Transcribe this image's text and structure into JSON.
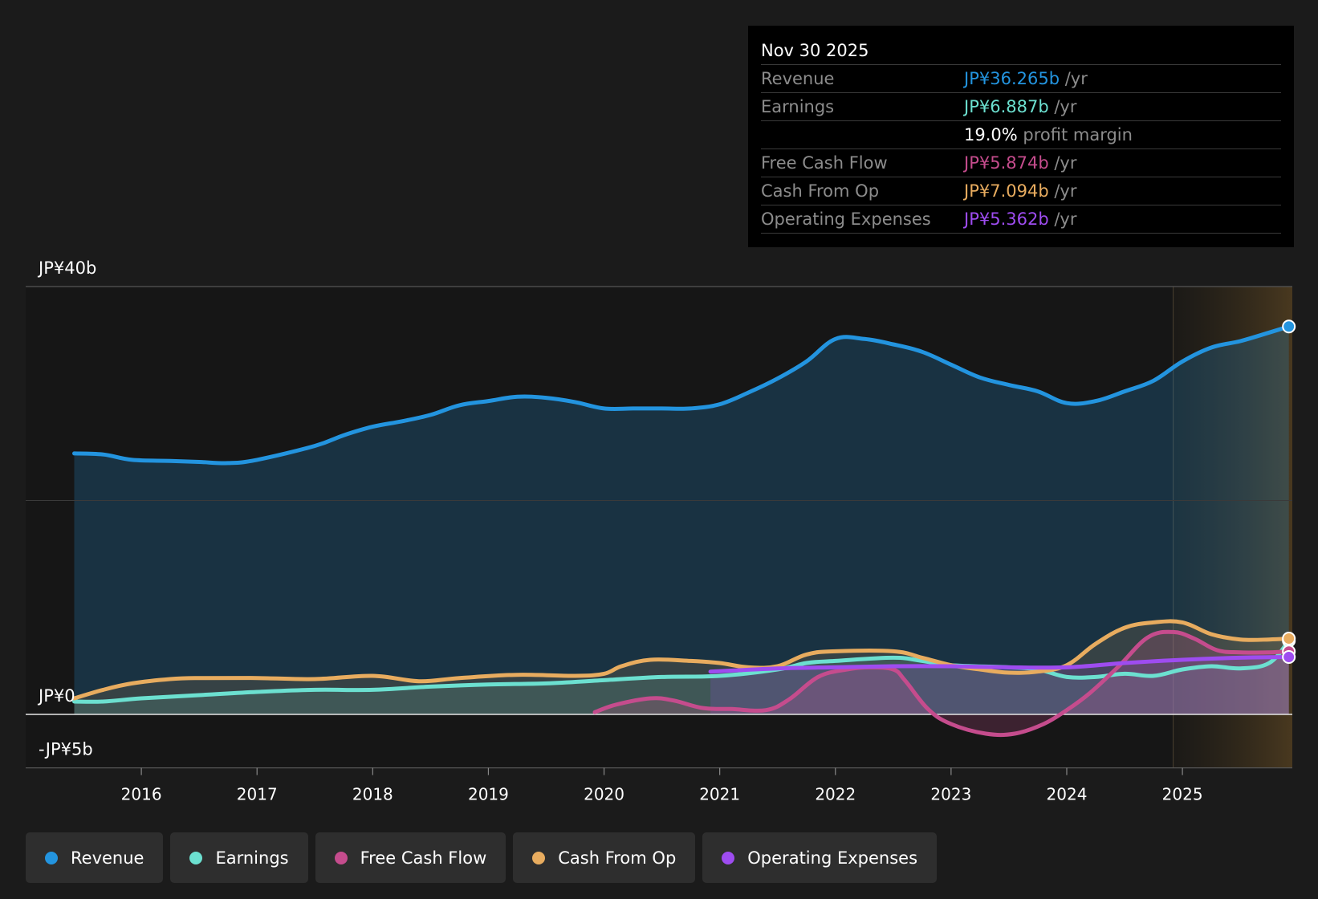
{
  "tooltip": {
    "date": "Nov 30 2025",
    "rows": [
      {
        "label": "Revenue",
        "value": "JP¥36.265b",
        "unit": "/yr",
        "color": "#2394df"
      },
      {
        "label": "Earnings",
        "value": "JP¥6.887b",
        "unit": "/yr",
        "color": "#6ce0d0"
      },
      {
        "label": "",
        "value": "19.0%",
        "unit": "profit margin",
        "color": "#ffffff"
      },
      {
        "label": "Free Cash Flow",
        "value": "JP¥5.874b",
        "unit": "/yr",
        "color": "#c54c8d"
      },
      {
        "label": "Cash From Op",
        "value": "JP¥7.094b",
        "unit": "/yr",
        "color": "#e8ac5f"
      },
      {
        "label": "Operating Expenses",
        "value": "JP¥5.362b",
        "unit": "/yr",
        "color": "#9e4cf0"
      }
    ]
  },
  "legend": [
    {
      "label": "Revenue",
      "color": "#2394df"
    },
    {
      "label": "Earnings",
      "color": "#6ce0d0"
    },
    {
      "label": "Free Cash Flow",
      "color": "#c54c8d"
    },
    {
      "label": "Cash From Op",
      "color": "#e8ac5f"
    },
    {
      "label": "Operating Expenses",
      "color": "#9e4cf0"
    }
  ],
  "chart_data": {
    "type": "line",
    "title": "",
    "xlabel": "",
    "ylabel": "",
    "ylim": [
      -5,
      40
    ],
    "xlim": [
      2015.0,
      2025.95
    ],
    "y_labels": [
      {
        "value": 40,
        "label": "JP¥40b"
      },
      {
        "value": 0,
        "label": "JP¥0"
      },
      {
        "value": -5,
        "label": "-JP¥5b"
      }
    ],
    "x_ticks": [
      {
        "value": 2016,
        "label": "2016"
      },
      {
        "value": 2017,
        "label": "2017"
      },
      {
        "value": 2018,
        "label": "2018"
      },
      {
        "value": 2019,
        "label": "2019"
      },
      {
        "value": 2020,
        "label": "2020"
      },
      {
        "value": 2021,
        "label": "2021"
      },
      {
        "value": 2022,
        "label": "2022"
      },
      {
        "value": 2023,
        "label": "2023"
      },
      {
        "value": 2024,
        "label": "2024"
      },
      {
        "value": 2025,
        "label": "2025"
      }
    ],
    "forecast_start": 2024.92,
    "series": [
      {
        "name": "Revenue",
        "color": "#2394df",
        "fill": true,
        "x": [
          2015.42,
          2015.67,
          2015.92,
          2016.25,
          2016.5,
          2016.75,
          2017.0,
          2017.5,
          2017.75,
          2018.0,
          2018.25,
          2018.5,
          2018.75,
          2019.0,
          2019.25,
          2019.5,
          2019.75,
          2020.0,
          2020.25,
          2020.5,
          2020.75,
          2021.0,
          2021.25,
          2021.5,
          2021.75,
          2022.0,
          2022.25,
          2022.5,
          2022.75,
          2023.0,
          2023.25,
          2023.5,
          2023.75,
          2024.0,
          2024.25,
          2024.5,
          2024.75,
          2025.0,
          2025.25,
          2025.5,
          2025.75,
          2025.92
        ],
        "values": [
          24.4,
          24.3,
          23.8,
          23.7,
          23.6,
          23.5,
          23.8,
          25.1,
          26.1,
          26.9,
          27.4,
          28.0,
          28.9,
          29.3,
          29.7,
          29.6,
          29.2,
          28.6,
          28.6,
          28.6,
          28.6,
          29.0,
          30.1,
          31.4,
          33.0,
          35.1,
          35.1,
          34.6,
          33.9,
          32.7,
          31.5,
          30.8,
          30.2,
          29.1,
          29.3,
          30.2,
          31.2,
          33.0,
          34.3,
          34.9,
          35.7,
          36.265
        ]
      },
      {
        "name": "Earnings",
        "color": "#6ce0d0",
        "fill": true,
        "x": [
          2015.42,
          2015.67,
          2016.0,
          2016.5,
          2017.0,
          2017.5,
          2018.0,
          2018.5,
          2019.0,
          2019.5,
          2020.0,
          2020.5,
          2021.0,
          2021.5,
          2021.75,
          2022.0,
          2022.5,
          2022.75,
          2023.0,
          2023.5,
          2023.75,
          2024.0,
          2024.25,
          2024.5,
          2024.75,
          2025.0,
          2025.25,
          2025.5,
          2025.75,
          2025.92
        ],
        "values": [
          1.2,
          1.2,
          1.5,
          1.8,
          2.1,
          2.3,
          2.3,
          2.6,
          2.8,
          2.9,
          3.2,
          3.5,
          3.6,
          4.2,
          4.8,
          5.0,
          5.3,
          5.0,
          4.6,
          4.4,
          4.2,
          3.5,
          3.5,
          3.8,
          3.6,
          4.2,
          4.5,
          4.3,
          4.8,
          6.887
        ]
      },
      {
        "name": "Free Cash Flow",
        "color": "#c54c8d",
        "fill": true,
        "x": [
          2019.92,
          2020.1,
          2020.4,
          2020.6,
          2020.85,
          2021.1,
          2021.4,
          2021.6,
          2021.85,
          2022.1,
          2022.3,
          2022.5,
          2022.6,
          2022.8,
          2023.0,
          2023.3,
          2023.55,
          2023.8,
          2024.0,
          2024.2,
          2024.45,
          2024.7,
          2024.92,
          2025.1,
          2025.3,
          2025.5,
          2025.75,
          2025.92
        ],
        "values": [
          0.2,
          0.9,
          1.5,
          1.3,
          0.6,
          0.5,
          0.4,
          1.4,
          3.5,
          4.2,
          4.4,
          4.2,
          3.2,
          0.5,
          -0.9,
          -1.8,
          -1.8,
          -0.9,
          0.4,
          2.0,
          4.5,
          7.2,
          7.7,
          7.1,
          6.0,
          5.8,
          5.8,
          5.874
        ]
      },
      {
        "name": "Cash From Op",
        "color": "#e8ac5f",
        "fill": true,
        "x": [
          2015.42,
          2015.67,
          2015.92,
          2016.25,
          2016.5,
          2017.0,
          2017.5,
          2018.0,
          2018.4,
          2018.75,
          2019.25,
          2019.75,
          2020.0,
          2020.15,
          2020.4,
          2020.75,
          2021.0,
          2021.25,
          2021.5,
          2021.75,
          2022.0,
          2022.5,
          2022.75,
          2023.0,
          2023.25,
          2023.5,
          2023.75,
          2024.0,
          2024.25,
          2024.5,
          2024.75,
          2025.0,
          2025.25,
          2025.5,
          2025.75,
          2025.92
        ],
        "values": [
          1.5,
          2.3,
          2.9,
          3.3,
          3.4,
          3.4,
          3.3,
          3.6,
          3.1,
          3.4,
          3.7,
          3.6,
          3.8,
          4.5,
          5.1,
          5.0,
          4.8,
          4.4,
          4.5,
          5.6,
          5.9,
          5.9,
          5.3,
          4.6,
          4.2,
          3.9,
          4.0,
          4.6,
          6.6,
          8.1,
          8.6,
          8.6,
          7.5,
          7.0,
          7.0,
          7.094
        ]
      },
      {
        "name": "Operating Expenses",
        "color": "#9e4cf0",
        "fill": true,
        "x": [
          2020.92,
          2021.5,
          2022.0,
          2022.5,
          2023.0,
          2023.5,
          2024.0,
          2024.5,
          2025.0,
          2025.5,
          2025.92
        ],
        "values": [
          4.0,
          4.3,
          4.4,
          4.5,
          4.5,
          4.4,
          4.4,
          4.8,
          5.1,
          5.3,
          5.362
        ]
      }
    ]
  }
}
